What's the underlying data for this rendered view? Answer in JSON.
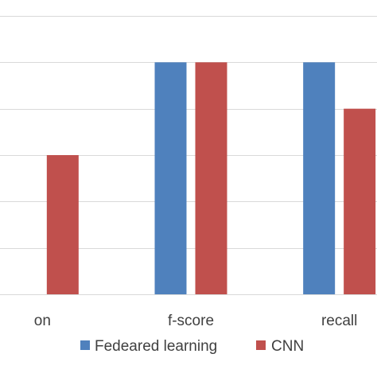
{
  "chart_data": {
    "type": "bar",
    "categories": [
      "on",
      "f-score",
      "recall"
    ],
    "series": [
      {
        "name": "Fedeared learning",
        "color": "#4f81bd",
        "values": [
          null,
          1.0,
          1.0
        ]
      },
      {
        "name": "CNN",
        "color": "#c0504d",
        "values": [
          0.6,
          1.0,
          0.8
        ]
      }
    ],
    "ylim": [
      0,
      1.2
    ],
    "grid": true,
    "legend": "bottom"
  }
}
